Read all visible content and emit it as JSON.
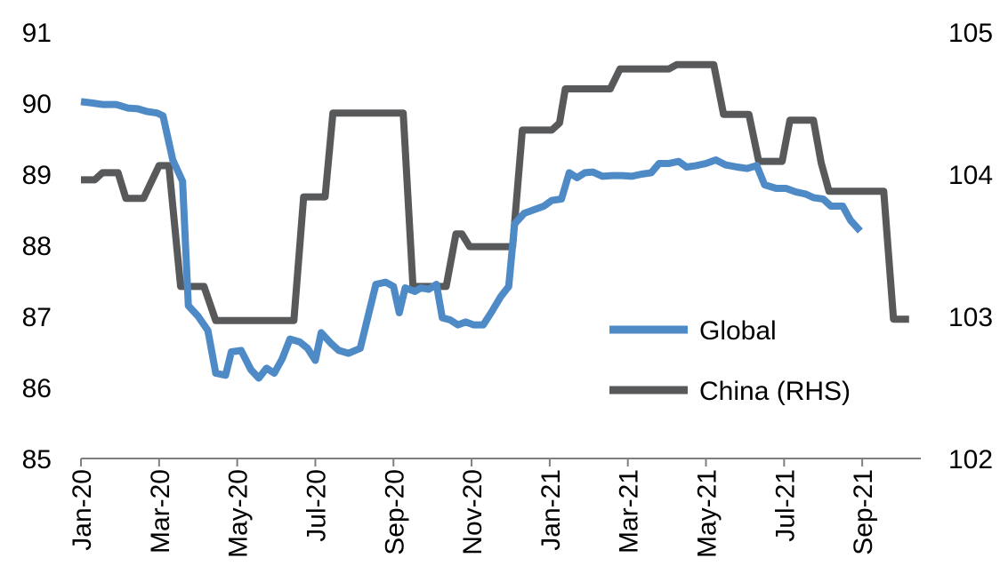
{
  "chart_data": {
    "type": "line",
    "title": "",
    "xlabel": "",
    "ylabel": "",
    "x_tick_labels": [
      "Jan-20",
      "Mar-20",
      "May-20",
      "Jul-20",
      "Sep-20",
      "Nov-20",
      "Jan-21",
      "Mar-21",
      "May-21",
      "Jul-21",
      "Sep-21"
    ],
    "x_range_months": [
      0,
      21.5
    ],
    "ylim_left": [
      85,
      91
    ],
    "yticks_left": [
      "85",
      "86",
      "87",
      "88",
      "89",
      "90",
      "91"
    ],
    "ylim_right": [
      102,
      105
    ],
    "yticks_right": [
      "102",
      "103",
      "104",
      "105"
    ],
    "grid": false,
    "legend_placement": "lower-right",
    "series": [
      {
        "name": "Global",
        "axis": "left",
        "color": "#4e8ac6",
        "points": [
          [
            0.0,
            90.02
          ],
          [
            0.3,
            90.0
          ],
          [
            0.55,
            89.98
          ],
          [
            0.9,
            89.98
          ],
          [
            1.2,
            89.93
          ],
          [
            1.45,
            89.92
          ],
          [
            1.7,
            89.88
          ],
          [
            1.95,
            89.86
          ],
          [
            2.1,
            89.82
          ],
          [
            2.35,
            89.2
          ],
          [
            2.6,
            88.9
          ],
          [
            2.75,
            87.15
          ],
          [
            3.0,
            87.0
          ],
          [
            3.25,
            86.8
          ],
          [
            3.45,
            86.2
          ],
          [
            3.7,
            86.17
          ],
          [
            3.85,
            86.5
          ],
          [
            4.1,
            86.52
          ],
          [
            4.35,
            86.25
          ],
          [
            4.55,
            86.13
          ],
          [
            4.75,
            86.27
          ],
          [
            4.95,
            86.2
          ],
          [
            5.15,
            86.4
          ],
          [
            5.35,
            86.68
          ],
          [
            5.6,
            86.64
          ],
          [
            5.8,
            86.55
          ],
          [
            6.0,
            86.38
          ],
          [
            6.15,
            86.77
          ],
          [
            6.4,
            86.62
          ],
          [
            6.6,
            86.52
          ],
          [
            6.85,
            86.48
          ],
          [
            7.15,
            86.55
          ],
          [
            7.35,
            87.0
          ],
          [
            7.55,
            87.45
          ],
          [
            7.8,
            87.48
          ],
          [
            8.0,
            87.42
          ],
          [
            8.15,
            87.05
          ],
          [
            8.3,
            87.4
          ],
          [
            8.55,
            87.35
          ],
          [
            8.7,
            87.4
          ],
          [
            8.9,
            87.38
          ],
          [
            9.1,
            87.45
          ],
          [
            9.25,
            86.98
          ],
          [
            9.45,
            86.95
          ],
          [
            9.65,
            86.88
          ],
          [
            9.85,
            86.92
          ],
          [
            10.05,
            86.88
          ],
          [
            10.3,
            86.88
          ],
          [
            10.5,
            87.05
          ],
          [
            10.75,
            87.28
          ],
          [
            10.95,
            87.42
          ],
          [
            11.1,
            88.3
          ],
          [
            11.35,
            88.45
          ],
          [
            11.6,
            88.5
          ],
          [
            11.85,
            88.55
          ],
          [
            12.05,
            88.63
          ],
          [
            12.3,
            88.65
          ],
          [
            12.5,
            89.02
          ],
          [
            12.7,
            88.95
          ],
          [
            12.9,
            89.02
          ],
          [
            13.1,
            89.03
          ],
          [
            13.35,
            88.97
          ],
          [
            13.6,
            88.98
          ],
          [
            13.85,
            88.98
          ],
          [
            14.1,
            88.97
          ],
          [
            14.35,
            89.0
          ],
          [
            14.6,
            89.02
          ],
          [
            14.8,
            89.15
          ],
          [
            15.05,
            89.15
          ],
          [
            15.3,
            89.18
          ],
          [
            15.5,
            89.1
          ],
          [
            15.75,
            89.12
          ],
          [
            16.0,
            89.15
          ],
          [
            16.25,
            89.2
          ],
          [
            16.5,
            89.13
          ],
          [
            16.8,
            89.1
          ],
          [
            17.05,
            89.08
          ],
          [
            17.3,
            89.12
          ],
          [
            17.5,
            88.85
          ],
          [
            17.8,
            88.8
          ],
          [
            18.05,
            88.8
          ],
          [
            18.3,
            88.75
          ],
          [
            18.55,
            88.72
          ],
          [
            18.75,
            88.67
          ],
          [
            19.0,
            88.65
          ],
          [
            19.2,
            88.55
          ],
          [
            19.5,
            88.55
          ],
          [
            19.7,
            88.35
          ],
          [
            19.95,
            88.2
          ]
        ]
      },
      {
        "name": "China (RHS)",
        "axis": "right",
        "color": "#58595b",
        "points": [
          [
            0.0,
            103.96
          ],
          [
            0.35,
            103.96
          ],
          [
            0.55,
            104.01
          ],
          [
            0.95,
            104.01
          ],
          [
            1.15,
            103.83
          ],
          [
            1.6,
            103.83
          ],
          [
            2.0,
            104.06
          ],
          [
            2.25,
            104.06
          ],
          [
            2.55,
            103.21
          ],
          [
            3.15,
            103.21
          ],
          [
            3.45,
            102.97
          ],
          [
            5.45,
            102.97
          ],
          [
            5.7,
            103.84
          ],
          [
            6.25,
            103.84
          ],
          [
            6.45,
            104.43
          ],
          [
            8.25,
            104.43
          ],
          [
            8.5,
            103.21
          ],
          [
            9.35,
            103.21
          ],
          [
            9.6,
            103.58
          ],
          [
            9.75,
            103.58
          ],
          [
            9.95,
            103.49
          ],
          [
            11.05,
            103.49
          ],
          [
            11.3,
            104.31
          ],
          [
            12.05,
            104.31
          ],
          [
            12.25,
            104.36
          ],
          [
            12.4,
            104.6
          ],
          [
            13.55,
            104.6
          ],
          [
            13.8,
            104.74
          ],
          [
            15.05,
            104.74
          ],
          [
            15.25,
            104.77
          ],
          [
            16.2,
            104.77
          ],
          [
            16.45,
            104.42
          ],
          [
            17.1,
            104.42
          ],
          [
            17.35,
            104.09
          ],
          [
            17.95,
            104.09
          ],
          [
            18.15,
            104.38
          ],
          [
            18.75,
            104.38
          ],
          [
            18.95,
            104.08
          ],
          [
            19.15,
            103.88
          ],
          [
            20.25,
            103.88
          ],
          [
            20.55,
            103.88
          ],
          [
            20.8,
            102.98
          ],
          [
            21.2,
            102.98
          ]
        ]
      }
    ]
  }
}
